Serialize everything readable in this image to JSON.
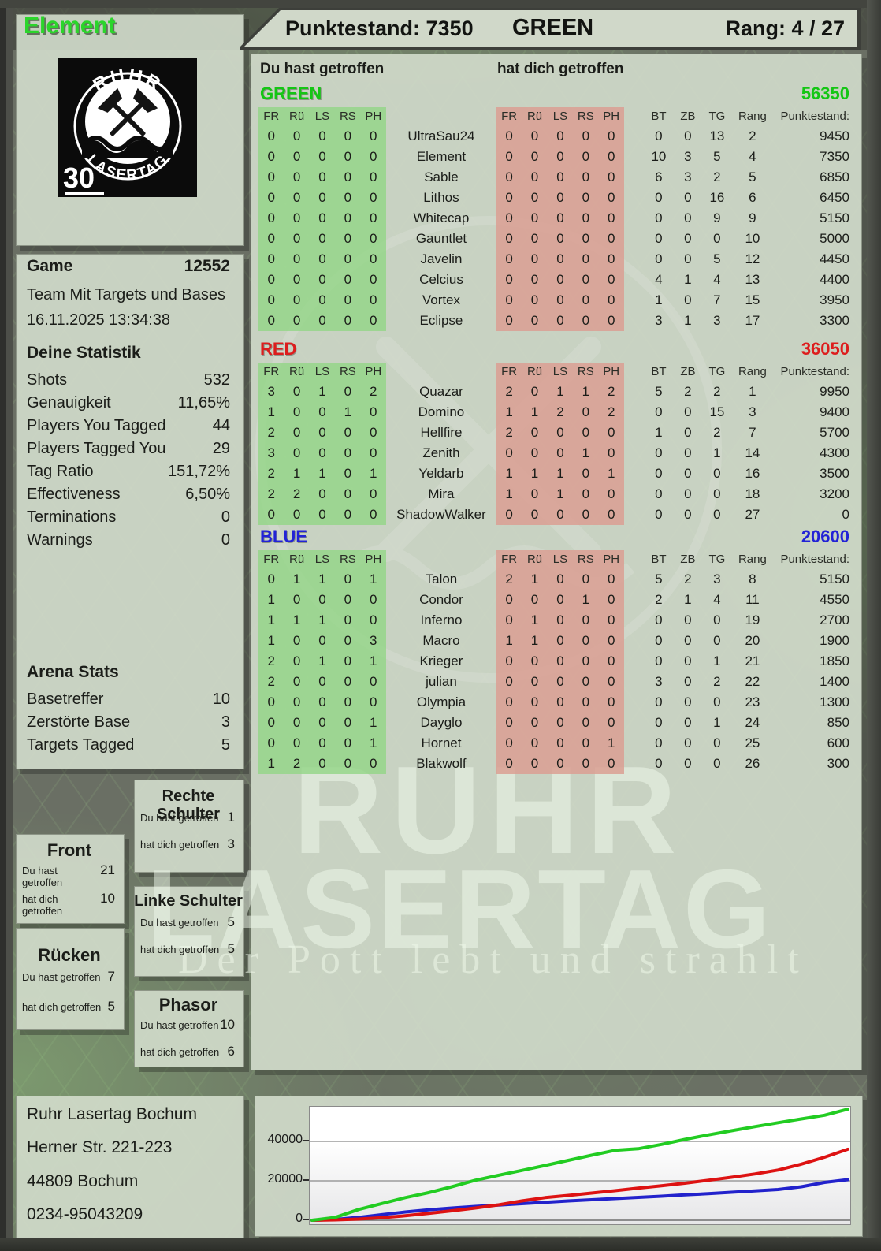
{
  "header": {
    "player_name": "Element",
    "score_label": "Punktestand: 7350",
    "team_label": "GREEN",
    "rank_label": "Rang: 4 / 27"
  },
  "hit_labels": {
    "you": "Du hast getroffen",
    "them": "hat dich getroffen"
  },
  "main": {
    "hit_cols": [
      "FR",
      "Rü",
      "LS",
      "RS",
      "PH"
    ],
    "stat_cols": [
      "BT",
      "ZB",
      "TG",
      "Rang",
      "Punktestand:"
    ]
  },
  "teams": [
    {
      "name": "GREEN",
      "color": "#14c614",
      "total": "56350",
      "players": [
        {
          "name": "UltraSau24",
          "you": [
            0,
            0,
            0,
            0,
            0
          ],
          "them": [
            0,
            0,
            0,
            0,
            0
          ],
          "stats": [
            "0",
            "0",
            "13",
            "2"
          ],
          "score": "9450"
        },
        {
          "name": "Element",
          "you": [
            0,
            0,
            0,
            0,
            0
          ],
          "them": [
            0,
            0,
            0,
            0,
            0
          ],
          "stats": [
            "10",
            "3",
            "5",
            "4"
          ],
          "score": "7350"
        },
        {
          "name": "Sable",
          "you": [
            0,
            0,
            0,
            0,
            0
          ],
          "them": [
            0,
            0,
            0,
            0,
            0
          ],
          "stats": [
            "6",
            "3",
            "2",
            "5"
          ],
          "score": "6850"
        },
        {
          "name": "Lithos",
          "you": [
            0,
            0,
            0,
            0,
            0
          ],
          "them": [
            0,
            0,
            0,
            0,
            0
          ],
          "stats": [
            "0",
            "0",
            "16",
            "6"
          ],
          "score": "6450"
        },
        {
          "name": "Whitecap",
          "you": [
            0,
            0,
            0,
            0,
            0
          ],
          "them": [
            0,
            0,
            0,
            0,
            0
          ],
          "stats": [
            "0",
            "0",
            "9",
            "9"
          ],
          "score": "5150"
        },
        {
          "name": "Gauntlet",
          "you": [
            0,
            0,
            0,
            0,
            0
          ],
          "them": [
            0,
            0,
            0,
            0,
            0
          ],
          "stats": [
            "0",
            "0",
            "0",
            "10"
          ],
          "score": "5000"
        },
        {
          "name": "Javelin",
          "you": [
            0,
            0,
            0,
            0,
            0
          ],
          "them": [
            0,
            0,
            0,
            0,
            0
          ],
          "stats": [
            "0",
            "0",
            "5",
            "12"
          ],
          "score": "4450"
        },
        {
          "name": "Celcius",
          "you": [
            0,
            0,
            0,
            0,
            0
          ],
          "them": [
            0,
            0,
            0,
            0,
            0
          ],
          "stats": [
            "4",
            "1",
            "4",
            "13"
          ],
          "score": "4400"
        },
        {
          "name": "Vortex",
          "you": [
            0,
            0,
            0,
            0,
            0
          ],
          "them": [
            0,
            0,
            0,
            0,
            0
          ],
          "stats": [
            "1",
            "0",
            "7",
            "15"
          ],
          "score": "3950"
        },
        {
          "name": "Eclipse",
          "you": [
            0,
            0,
            0,
            0,
            0
          ],
          "them": [
            0,
            0,
            0,
            0,
            0
          ],
          "stats": [
            "3",
            "1",
            "3",
            "17"
          ],
          "score": "3300"
        }
      ]
    },
    {
      "name": "RED",
      "color": "#dd1d1d",
      "total": "36050",
      "players": [
        {
          "name": "Quazar",
          "you": [
            3,
            0,
            1,
            0,
            2
          ],
          "them": [
            2,
            0,
            1,
            1,
            2
          ],
          "stats": [
            "5",
            "2",
            "2",
            "1"
          ],
          "score": "9950"
        },
        {
          "name": "Domino",
          "you": [
            1,
            0,
            0,
            1,
            0
          ],
          "them": [
            1,
            1,
            2,
            0,
            2
          ],
          "stats": [
            "0",
            "0",
            "15",
            "3"
          ],
          "score": "9400"
        },
        {
          "name": "Hellfire",
          "you": [
            2,
            0,
            0,
            0,
            0
          ],
          "them": [
            2,
            0,
            0,
            0,
            0
          ],
          "stats": [
            "1",
            "0",
            "2",
            "7"
          ],
          "score": "5700"
        },
        {
          "name": "Zenith",
          "you": [
            3,
            0,
            0,
            0,
            0
          ],
          "them": [
            0,
            0,
            0,
            1,
            0
          ],
          "stats": [
            "0",
            "0",
            "1",
            "14"
          ],
          "score": "4300"
        },
        {
          "name": "Yeldarb",
          "you": [
            2,
            1,
            1,
            0,
            1
          ],
          "them": [
            1,
            1,
            1,
            0,
            1
          ],
          "stats": [
            "0",
            "0",
            "0",
            "16"
          ],
          "score": "3500"
        },
        {
          "name": "Mira",
          "you": [
            2,
            2,
            0,
            0,
            0
          ],
          "them": [
            1,
            0,
            1,
            0,
            0
          ],
          "stats": [
            "0",
            "0",
            "0",
            "18"
          ],
          "score": "3200"
        },
        {
          "name": "ShadowWalker",
          "you": [
            0,
            0,
            0,
            0,
            0
          ],
          "them": [
            0,
            0,
            0,
            0,
            0
          ],
          "stats": [
            "0",
            "0",
            "0",
            "27"
          ],
          "score": "0"
        }
      ]
    },
    {
      "name": "BLUE",
      "color": "#2222d6",
      "total": "20600",
      "players": [
        {
          "name": "Talon",
          "you": [
            0,
            1,
            1,
            0,
            1
          ],
          "them": [
            2,
            1,
            0,
            0,
            0
          ],
          "stats": [
            "5",
            "2",
            "3",
            "8"
          ],
          "score": "5150"
        },
        {
          "name": "Condor",
          "you": [
            1,
            0,
            0,
            0,
            0
          ],
          "them": [
            0,
            0,
            0,
            1,
            0
          ],
          "stats": [
            "2",
            "1",
            "4",
            "11"
          ],
          "score": "4550"
        },
        {
          "name": "Inferno",
          "you": [
            1,
            1,
            1,
            0,
            0
          ],
          "them": [
            0,
            1,
            0,
            0,
            0
          ],
          "stats": [
            "0",
            "0",
            "0",
            "19"
          ],
          "score": "2700"
        },
        {
          "name": "Macro",
          "you": [
            1,
            0,
            0,
            0,
            3
          ],
          "them": [
            1,
            1,
            0,
            0,
            0
          ],
          "stats": [
            "0",
            "0",
            "0",
            "20"
          ],
          "score": "1900"
        },
        {
          "name": "Krieger",
          "you": [
            2,
            0,
            1,
            0,
            1
          ],
          "them": [
            0,
            0,
            0,
            0,
            0
          ],
          "stats": [
            "0",
            "0",
            "1",
            "21"
          ],
          "score": "1850"
        },
        {
          "name": "julian",
          "you": [
            2,
            0,
            0,
            0,
            0
          ],
          "them": [
            0,
            0,
            0,
            0,
            0
          ],
          "stats": [
            "3",
            "0",
            "2",
            "22"
          ],
          "score": "1400"
        },
        {
          "name": "Olympia",
          "you": [
            0,
            0,
            0,
            0,
            0
          ],
          "them": [
            0,
            0,
            0,
            0,
            0
          ],
          "stats": [
            "0",
            "0",
            "0",
            "23"
          ],
          "score": "1300"
        },
        {
          "name": "Dayglo",
          "you": [
            0,
            0,
            0,
            0,
            1
          ],
          "them": [
            0,
            0,
            0,
            0,
            0
          ],
          "stats": [
            "0",
            "0",
            "1",
            "24"
          ],
          "score": "850"
        },
        {
          "name": "Hornet",
          "you": [
            0,
            0,
            0,
            0,
            1
          ],
          "them": [
            0,
            0,
            0,
            0,
            1
          ],
          "stats": [
            "0",
            "0",
            "0",
            "25"
          ],
          "score": "600"
        },
        {
          "name": "Blakwolf",
          "you": [
            1,
            2,
            0,
            0,
            0
          ],
          "them": [
            0,
            0,
            0,
            0,
            0
          ],
          "stats": [
            "0",
            "0",
            "0",
            "26"
          ],
          "score": "300"
        }
      ]
    }
  ],
  "sidebar": {
    "game_label": "Game",
    "game_number": "12552",
    "game_mode": "Team Mit Targets und Bases",
    "game_datetime": "16.11.2025 13:34:38",
    "stats_title": "Deine Statistik",
    "stats": [
      {
        "label": "Shots",
        "value": "532"
      },
      {
        "label": "Genauigkeit",
        "value": "11,65%"
      },
      {
        "label": "Players You Tagged",
        "value": "44"
      },
      {
        "label": "Players Tagged You",
        "value": "29"
      },
      {
        "label": "Tag Ratio",
        "value": "151,72%"
      },
      {
        "label": "Effectiveness",
        "value": "6,50%"
      },
      {
        "label": "Terminations",
        "value": "0"
      },
      {
        "label": "Warnings",
        "value": "0"
      }
    ],
    "arena_title": "Arena Stats",
    "arena": [
      {
        "label": "Basetreffer",
        "value": "10"
      },
      {
        "label": "Zerstörte Base",
        "value": "3"
      },
      {
        "label": "Targets Tagged",
        "value": "5"
      }
    ]
  },
  "body_panels": [
    {
      "title": "Front",
      "you": "21",
      "them": "10"
    },
    {
      "title": "Rücken",
      "you": "7",
      "them": "5"
    },
    {
      "title": "Rechte Schulter",
      "you": "1",
      "them": "3"
    },
    {
      "title": "Linke Schulter",
      "you": "5",
      "them": "5"
    },
    {
      "title": "Phasor",
      "you": "10",
      "them": "6"
    }
  ],
  "logo": {
    "arc_top": "RUHR",
    "arc_bottom": "LASERTAG",
    "badge": "30"
  },
  "watermark": {
    "line1": "RUHR",
    "line2": "LASERTAG",
    "slogan": "Der Pott lebt und strahlt"
  },
  "address": [
    "Ruhr Lasertag Bochum",
    "Herner Str. 221-223",
    "44809 Bochum",
    "0234-95043209"
  ],
  "chart_data": {
    "type": "line",
    "title": "",
    "xlabel": "",
    "ylabel": "",
    "x_range": [
      0,
      1
    ],
    "ylim": [
      0,
      57600
    ],
    "yticks": [
      0,
      20000,
      40000
    ],
    "grid": true,
    "legend": "none",
    "series": [
      {
        "name": "GREEN",
        "color": "#22cc22",
        "values": [
          0,
          1500,
          5500,
          8500,
          11500,
          14000,
          17000,
          20300,
          22800,
          25300,
          27800,
          30400,
          33000,
          35500,
          36300,
          38500,
          41000,
          43300,
          45400,
          47500,
          49500,
          51400,
          53300,
          56350
        ]
      },
      {
        "name": "RED",
        "color": "#dd1212",
        "values": [
          0,
          200,
          600,
          1300,
          2300,
          3500,
          4800,
          6200,
          7800,
          9800,
          11500,
          12600,
          13800,
          15000,
          16300,
          17500,
          18800,
          20300,
          21800,
          23500,
          25500,
          28500,
          32000,
          36050
        ]
      },
      {
        "name": "BLUE",
        "color": "#2222cc",
        "values": [
          0,
          400,
          1500,
          2900,
          4200,
          5300,
          6200,
          7000,
          7700,
          8400,
          9100,
          9800,
          10400,
          11000,
          11600,
          12200,
          12900,
          13500,
          14200,
          14900,
          15600,
          17000,
          19200,
          20600
        ]
      }
    ]
  }
}
